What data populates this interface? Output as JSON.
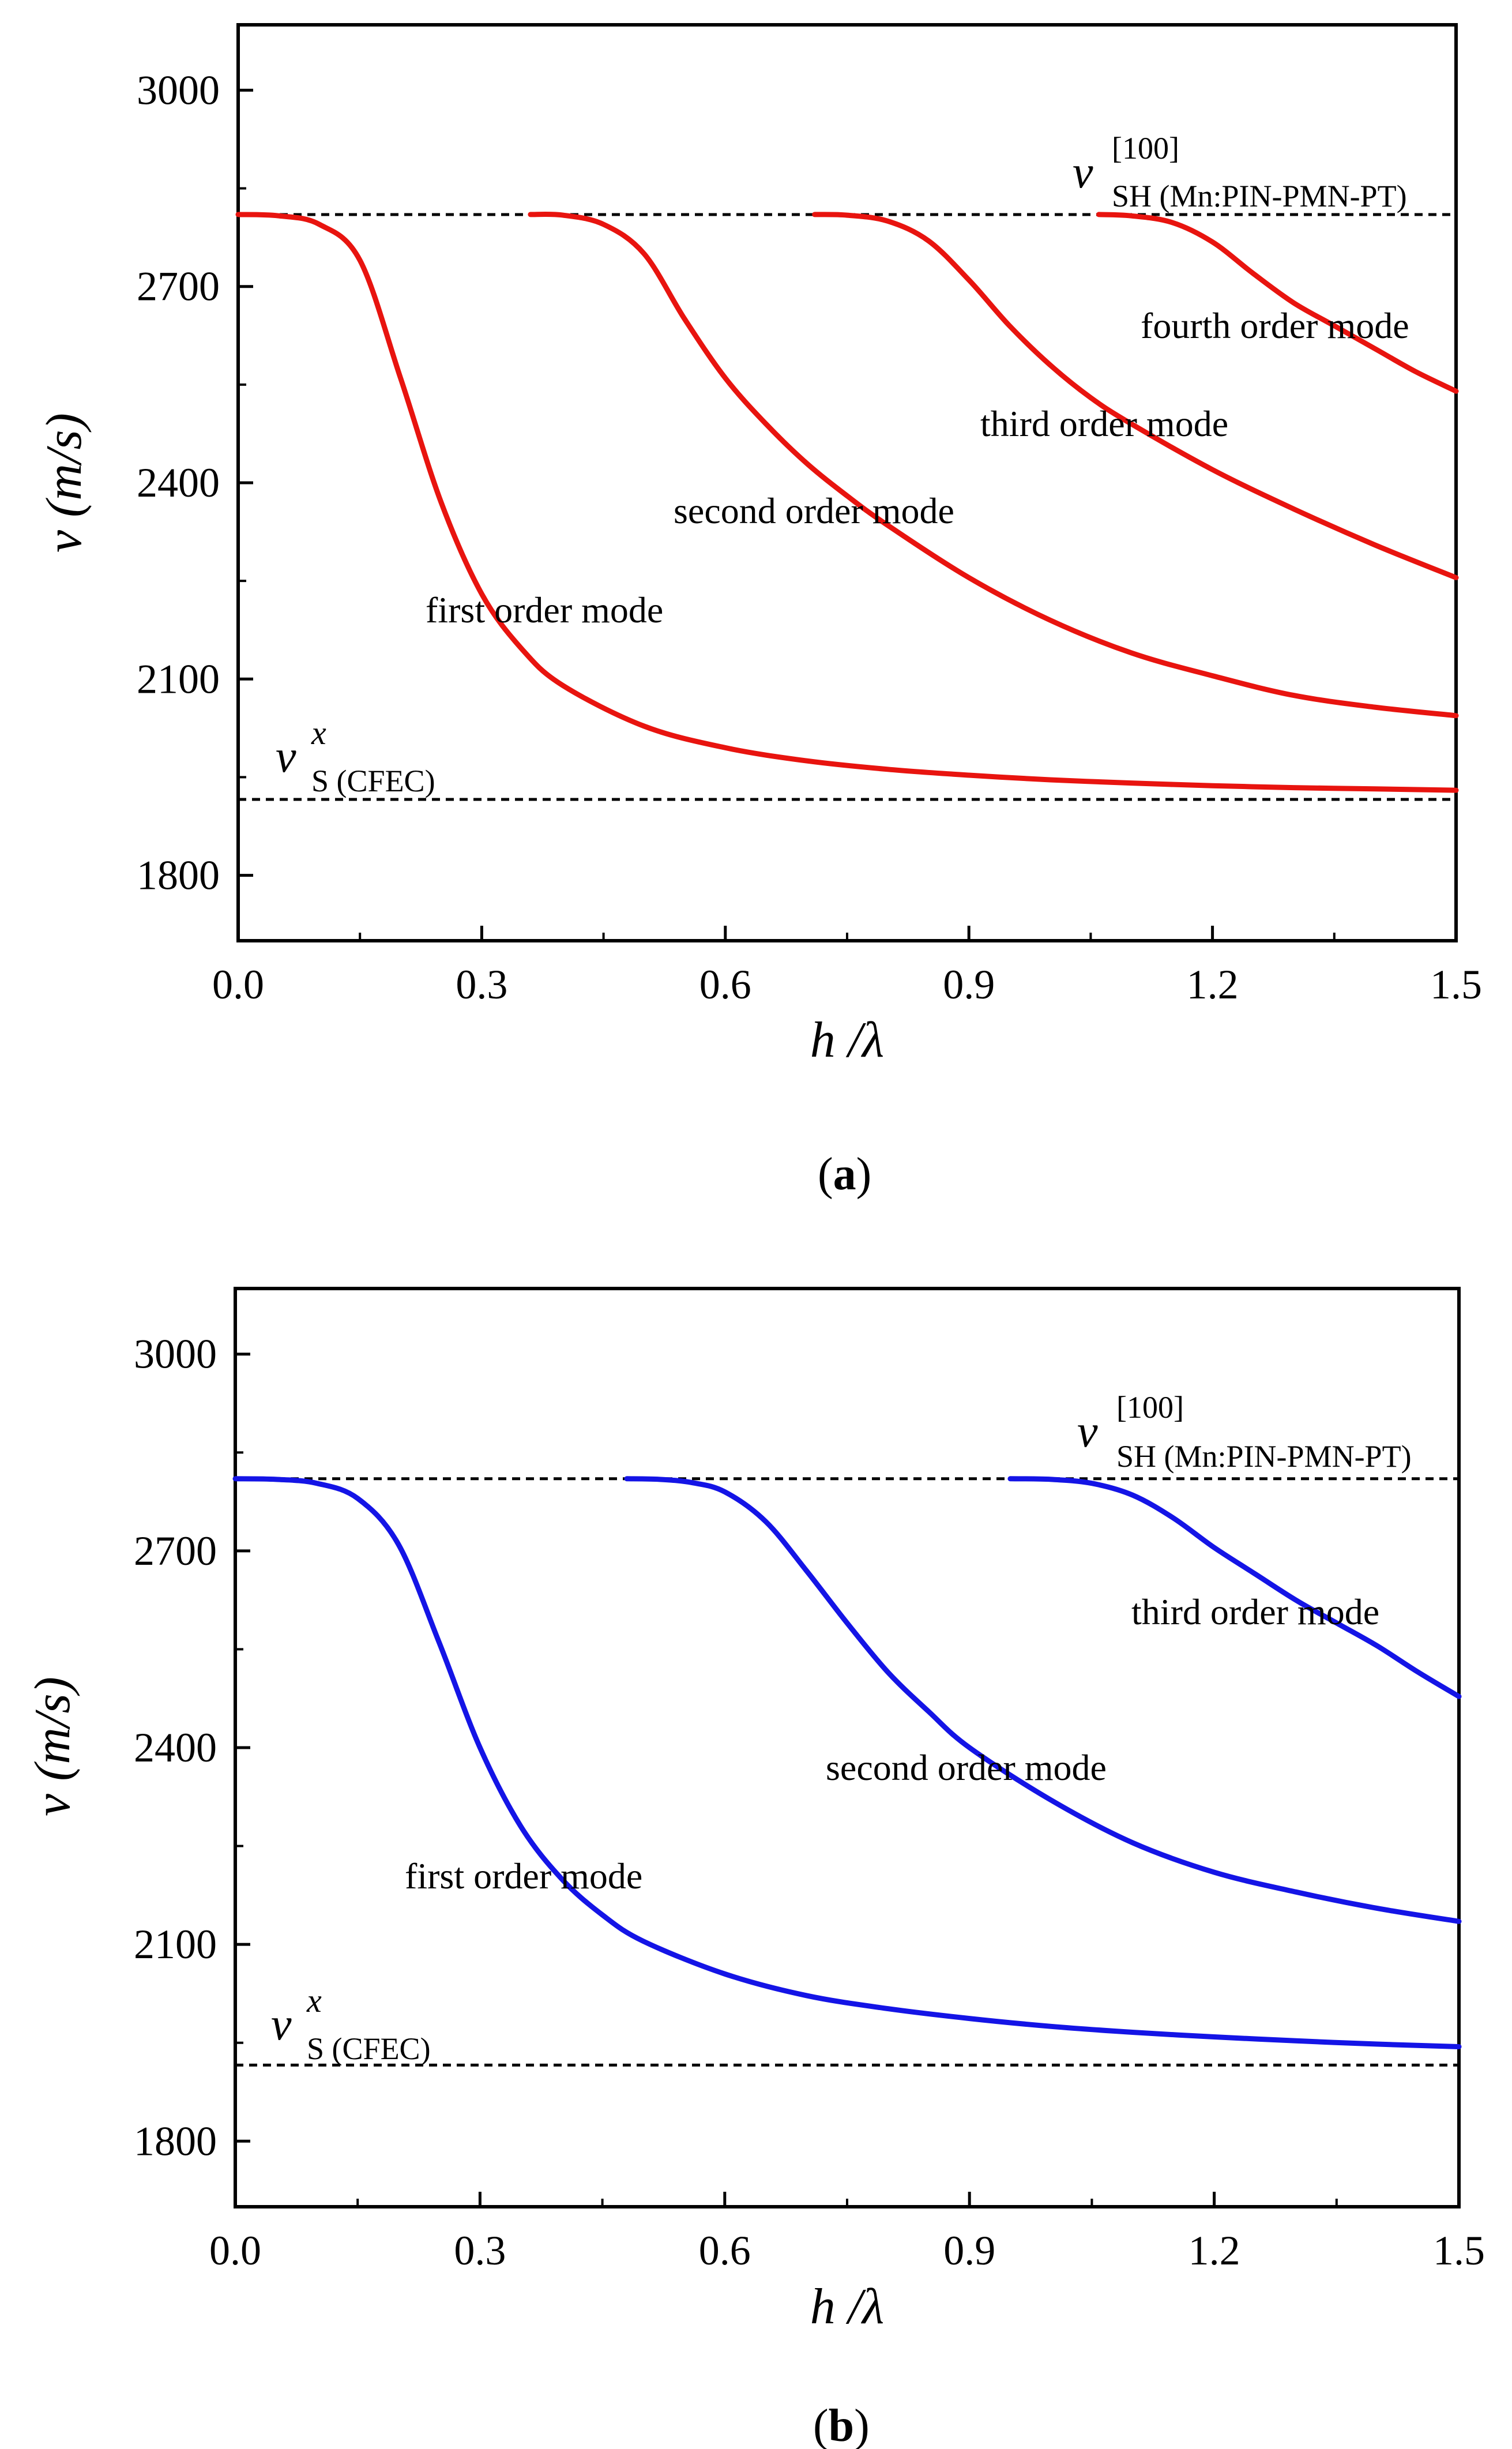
{
  "chart_data": [
    {
      "type": "line",
      "panel": "a",
      "xlabel": "h /λ",
      "ylabel": "v (m/s)",
      "xlim": [
        0.0,
        1.5
      ],
      "ylim": [
        1700,
        3100
      ],
      "xticks": [
        "0.0",
        "0.3",
        "0.6",
        "0.9",
        "1.2",
        "1.5"
      ],
      "yticks": [
        "1800",
        "2100",
        "2400",
        "2700",
        "3000"
      ],
      "line_color": "#e8140f",
      "reference_lines": [
        {
          "name": "v SH [100] (Mn:PIN-PMN-PT)",
          "y": 2810,
          "main": "v",
          "superscript": "[100]",
          "subscript": "SH (Mn:PIN-PMN-PT)"
        },
        {
          "name": "v S x (CFEC)",
          "y": 1916,
          "main": "v",
          "superscript": "x",
          "subscript": "S (CFEC)"
        }
      ],
      "series": [
        {
          "name": "first order mode",
          "x": [
            0.0,
            0.05,
            0.1,
            0.15,
            0.2,
            0.25,
            0.3,
            0.35,
            0.4,
            0.5,
            0.6,
            0.7,
            0.8,
            0.9,
            1.0,
            1.1,
            1.2,
            1.3,
            1.4,
            1.5
          ],
          "y": [
            2810,
            2808,
            2795,
            2740,
            2560,
            2370,
            2230,
            2145,
            2090,
            2028,
            1995,
            1975,
            1962,
            1953,
            1946,
            1941,
            1937,
            1934,
            1932,
            1930
          ]
        },
        {
          "name": "second order mode",
          "x": [
            0.36,
            0.4,
            0.45,
            0.5,
            0.55,
            0.6,
            0.65,
            0.7,
            0.75,
            0.8,
            0.9,
            1.0,
            1.1,
            1.2,
            1.3,
            1.4,
            1.5
          ],
          "y": [
            2810,
            2809,
            2795,
            2750,
            2650,
            2560,
            2490,
            2430,
            2380,
            2335,
            2255,
            2190,
            2140,
            2105,
            2075,
            2057,
            2044
          ]
        },
        {
          "name": "third order mode",
          "x": [
            0.71,
            0.75,
            0.8,
            0.85,
            0.9,
            0.95,
            1.0,
            1.05,
            1.1,
            1.2,
            1.3,
            1.4,
            1.5
          ],
          "y": [
            2810,
            2809,
            2800,
            2770,
            2710,
            2640,
            2580,
            2530,
            2490,
            2420,
            2360,
            2305,
            2255
          ]
        },
        {
          "name": "fourth order mode",
          "x": [
            1.06,
            1.1,
            1.15,
            1.2,
            1.25,
            1.3,
            1.35,
            1.4,
            1.45,
            1.5
          ],
          "y": [
            2810,
            2808,
            2798,
            2768,
            2720,
            2675,
            2640,
            2605,
            2570,
            2540
          ]
        }
      ],
      "labels": [
        "first order mode",
        "second order mode",
        "third order mode",
        "fourth order mode"
      ],
      "caption": "a"
    },
    {
      "type": "line",
      "panel": "b",
      "xlabel": "h /λ",
      "ylabel": "v (m/s)",
      "xlim": [
        0.0,
        1.5
      ],
      "ylim": [
        1700,
        3100
      ],
      "xticks": [
        "0.0",
        "0.3",
        "0.6",
        "0.9",
        "1.2",
        "1.5"
      ],
      "yticks": [
        "1800",
        "2100",
        "2400",
        "2700",
        "3000"
      ],
      "line_color": "#1414e6",
      "reference_lines": [
        {
          "name": "v SH [100] (Mn:PIN-PMN-PT)",
          "y": 2810,
          "main": "v",
          "superscript": "[100]",
          "subscript": "SH (Mn:PIN-PMN-PT)"
        },
        {
          "name": "v S x (CFEC)",
          "y": 1916,
          "main": "v",
          "superscript": "x",
          "subscript": "S (CFEC)"
        }
      ],
      "series": [
        {
          "name": "first order mode",
          "x": [
            0.0,
            0.05,
            0.1,
            0.15,
            0.2,
            0.25,
            0.3,
            0.35,
            0.4,
            0.45,
            0.5,
            0.6,
            0.7,
            0.8,
            0.9,
            1.0,
            1.1,
            1.2,
            1.3,
            1.4,
            1.5
          ],
          "y": [
            2810,
            2809,
            2803,
            2780,
            2710,
            2560,
            2400,
            2280,
            2200,
            2145,
            2105,
            2055,
            2022,
            2002,
            1987,
            1975,
            1966,
            1959,
            1953,
            1948,
            1944
          ]
        },
        {
          "name": "second order mode",
          "x": [
            0.48,
            0.52,
            0.56,
            0.6,
            0.65,
            0.7,
            0.75,
            0.8,
            0.85,
            0.9,
            1.0,
            1.1,
            1.2,
            1.3,
            1.4,
            1.5
          ],
          "y": [
            2810,
            2809,
            2804,
            2790,
            2745,
            2670,
            2590,
            2515,
            2455,
            2400,
            2320,
            2255,
            2210,
            2180,
            2155,
            2135
          ]
        },
        {
          "name": "third order mode",
          "x": [
            0.95,
            1.0,
            1.05,
            1.1,
            1.15,
            1.2,
            1.25,
            1.3,
            1.35,
            1.4,
            1.45,
            1.5
          ],
          "y": [
            2810,
            2809,
            2803,
            2785,
            2750,
            2705,
            2665,
            2625,
            2590,
            2555,
            2515,
            2478
          ]
        }
      ],
      "labels": [
        "first order mode",
        "second order mode",
        "third order mode"
      ],
      "caption": "b"
    }
  ]
}
